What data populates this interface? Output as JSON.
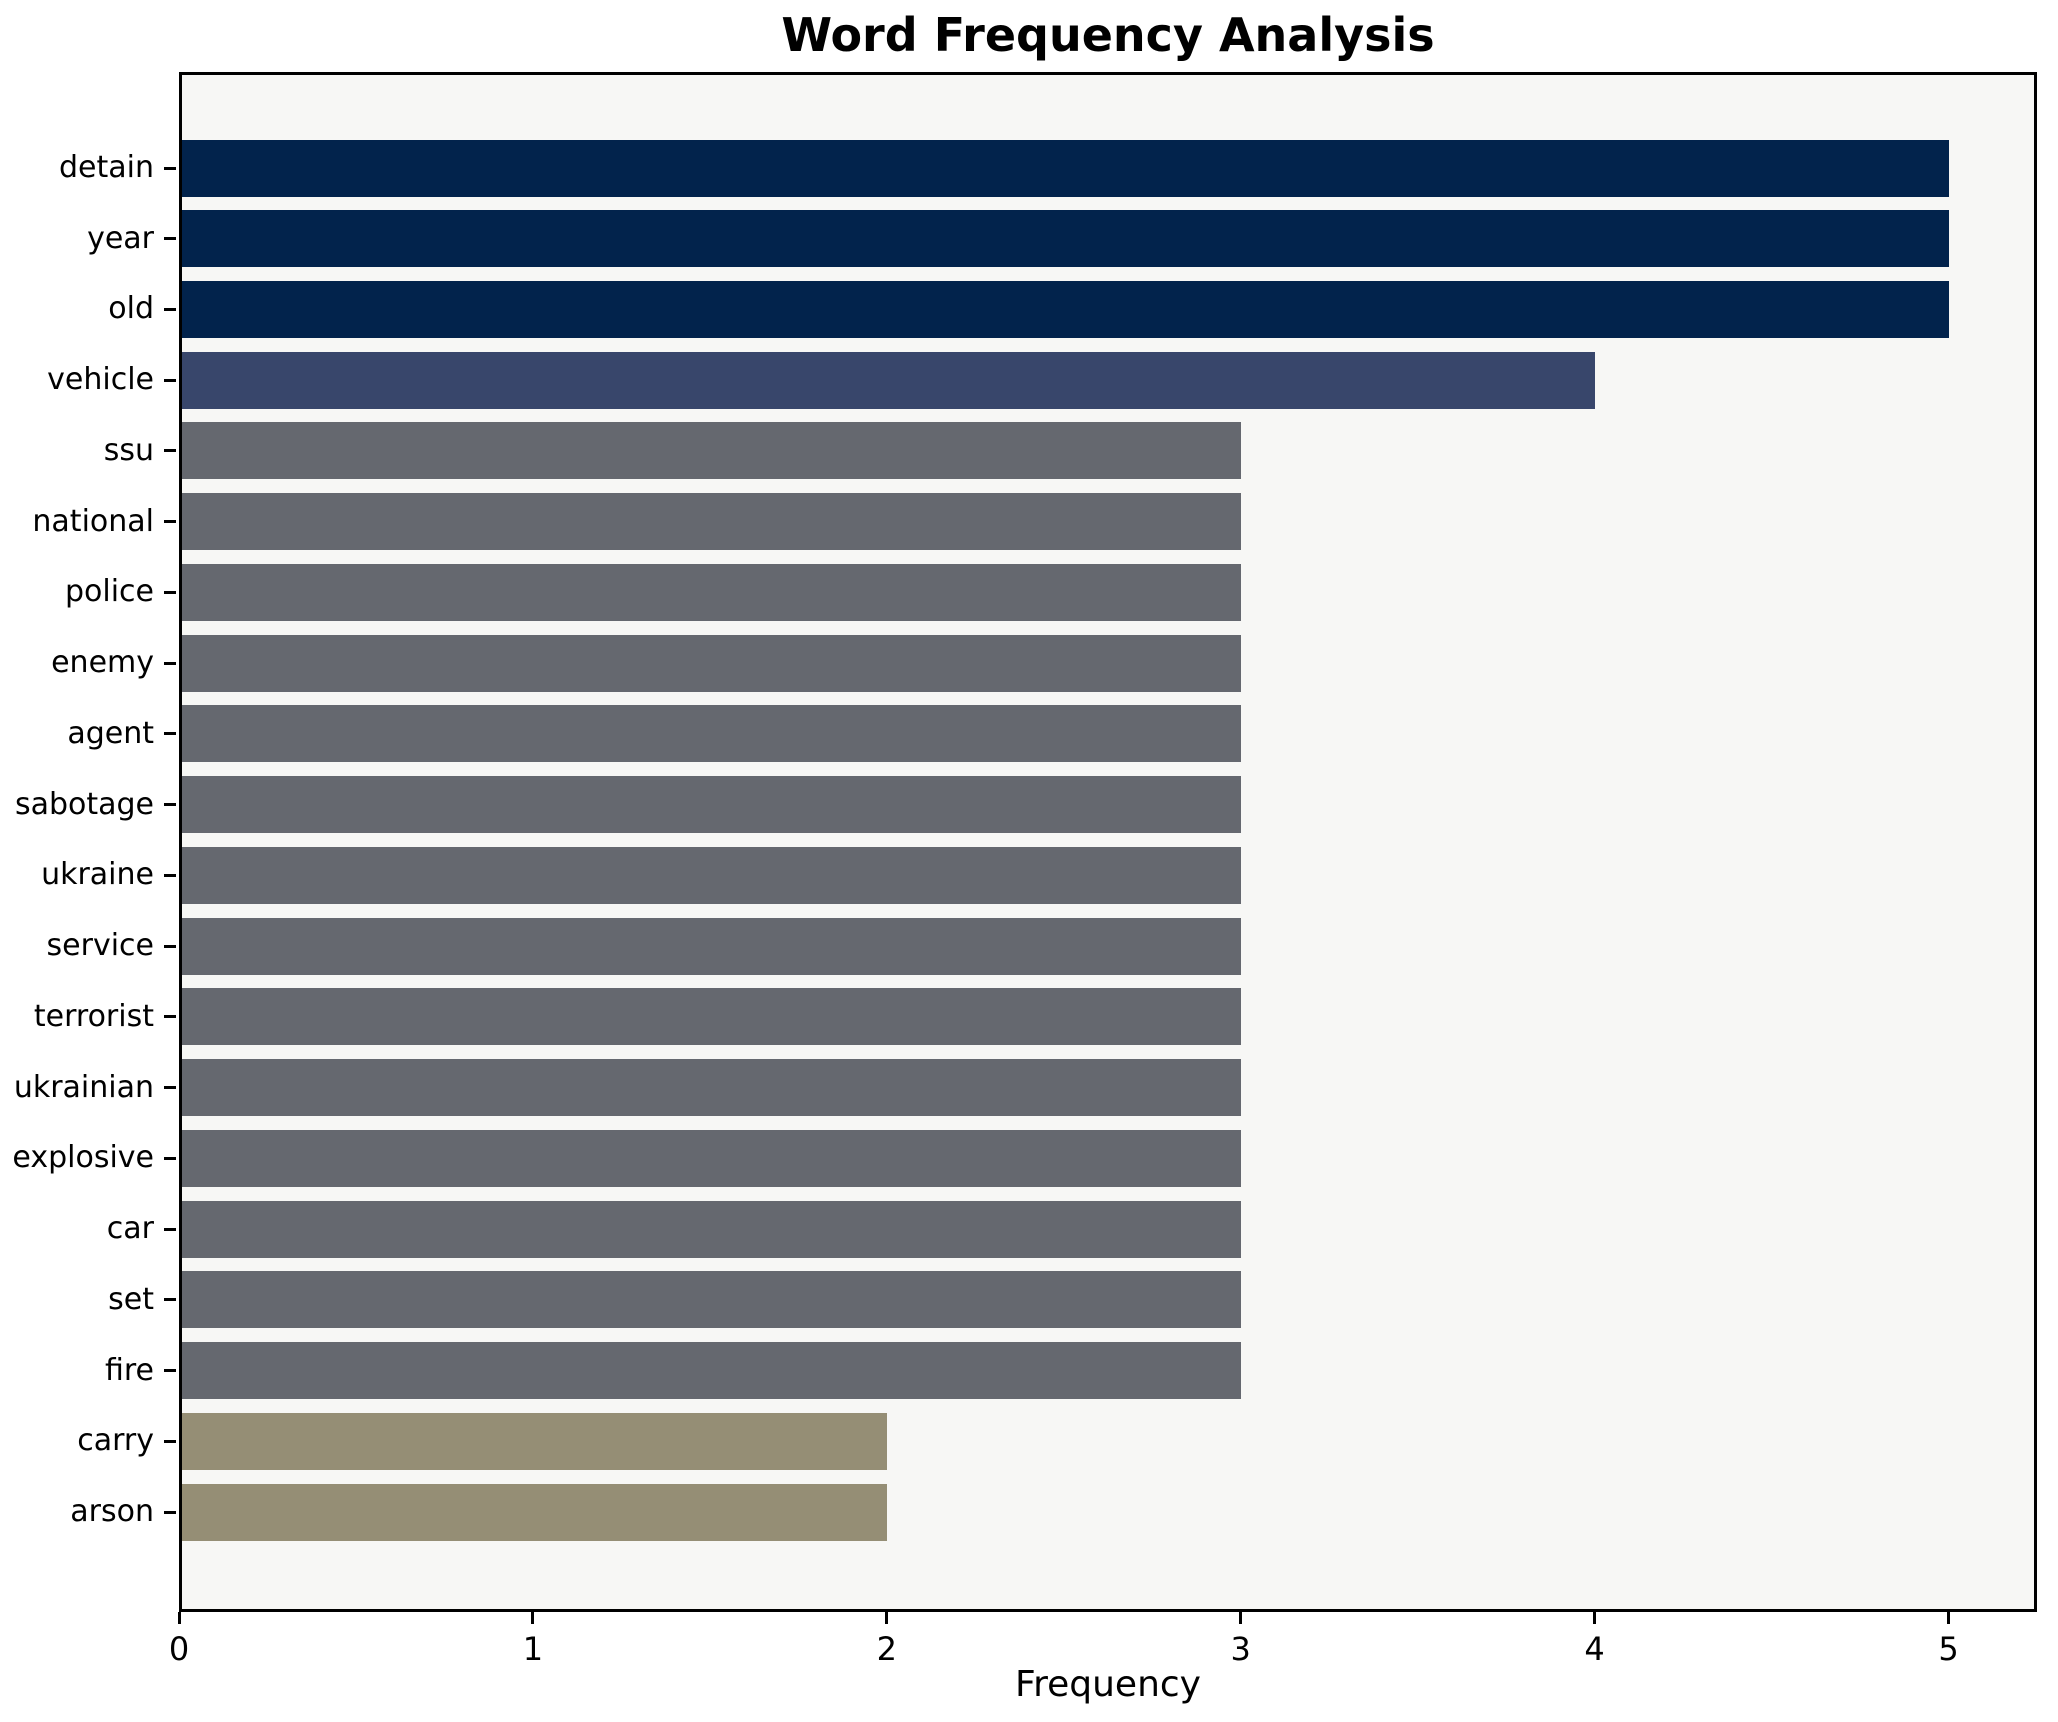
{
  "chart_data": {
    "type": "bar",
    "orientation": "horizontal",
    "title": "Word Frequency Analysis",
    "xlabel": "Frequency",
    "ylabel": "",
    "categories": [
      "detain",
      "year",
      "old",
      "vehicle",
      "ssu",
      "national",
      "police",
      "enemy",
      "agent",
      "sabotage",
      "ukraine",
      "service",
      "terrorist",
      "ukrainian",
      "explosive",
      "car",
      "set",
      "fire",
      "carry",
      "arson"
    ],
    "values": [
      5,
      5,
      5,
      4,
      3,
      3,
      3,
      3,
      3,
      3,
      3,
      3,
      3,
      3,
      3,
      3,
      3,
      3,
      2,
      2
    ],
    "xticks": [
      0,
      1,
      2,
      3,
      4,
      5
    ],
    "xlim": [
      0,
      5.25
    ],
    "grid": false,
    "legend": null,
    "colors_by_value": {
      "5": "#02234c",
      "4": "#38466b",
      "3": "#65686f",
      "2": "#958e75"
    },
    "plot_background": "#f7f7f5",
    "figure_background": "#ffffff",
    "spine_color": "#000000"
  }
}
